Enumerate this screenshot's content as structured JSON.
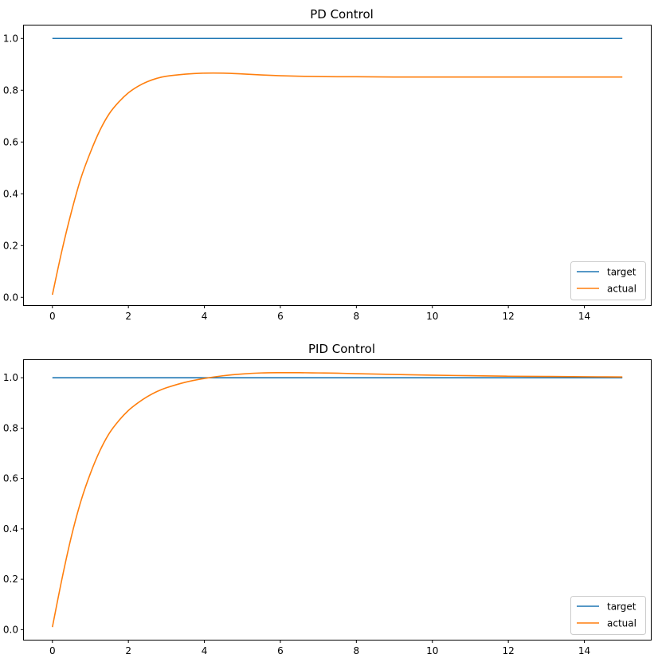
{
  "chart_data": [
    {
      "type": "line",
      "title": "PD Control",
      "xlabel": "",
      "ylabel": "",
      "xlim": [
        -0.75,
        15.75
      ],
      "ylim": [
        -0.03,
        1.05
      ],
      "xticks": [
        0,
        2,
        4,
        6,
        8,
        10,
        12,
        14
      ],
      "xtick_labels": [
        "0",
        "2",
        "4",
        "6",
        "8",
        "10",
        "12",
        "14"
      ],
      "yticks": [
        0.0,
        0.2,
        0.4,
        0.6,
        0.8,
        1.0
      ],
      "ytick_labels": [
        "0.0",
        "0.2",
        "0.4",
        "0.6",
        "0.8",
        "1.0"
      ],
      "grid": false,
      "legend_position": "lower-right",
      "series": [
        {
          "name": "target",
          "color": "#1f77b4",
          "x": [
            0,
            15
          ],
          "y": [
            1.0,
            1.0
          ]
        },
        {
          "name": "actual",
          "color": "#ff7f0e",
          "x": [
            0,
            0.25,
            0.5,
            0.75,
            1.0,
            1.25,
            1.5,
            1.75,
            2.0,
            2.25,
            2.5,
            2.75,
            3.0,
            3.5,
            4.0,
            4.5,
            5.0,
            5.5,
            6.0,
            6.5,
            7.0,
            7.5,
            8.0,
            9.0,
            10.0,
            11.0,
            12.0,
            13.0,
            14.0,
            15.0
          ],
          "y": [
            0.01,
            0.18,
            0.33,
            0.46,
            0.56,
            0.645,
            0.71,
            0.755,
            0.79,
            0.815,
            0.833,
            0.846,
            0.854,
            0.862,
            0.866,
            0.866,
            0.863,
            0.859,
            0.856,
            0.854,
            0.853,
            0.852,
            0.852,
            0.851,
            0.851,
            0.851,
            0.851,
            0.851,
            0.851,
            0.851
          ]
        }
      ]
    },
    {
      "type": "line",
      "title": "PID Control",
      "xlabel": "",
      "ylabel": "",
      "xlim": [
        -0.75,
        15.75
      ],
      "ylim": [
        -0.04,
        1.07
      ],
      "xticks": [
        0,
        2,
        4,
        6,
        8,
        10,
        12,
        14
      ],
      "xtick_labels": [
        "0",
        "2",
        "4",
        "6",
        "8",
        "10",
        "12",
        "14"
      ],
      "yticks": [
        0.0,
        0.2,
        0.4,
        0.6,
        0.8,
        1.0
      ],
      "ytick_labels": [
        "0.0",
        "0.2",
        "0.4",
        "0.6",
        "0.8",
        "1.0"
      ],
      "grid": false,
      "legend_position": "lower-right",
      "series": [
        {
          "name": "target",
          "color": "#1f77b4",
          "x": [
            0,
            15
          ],
          "y": [
            1.0,
            1.0
          ]
        },
        {
          "name": "actual",
          "color": "#ff7f0e",
          "x": [
            0,
            0.25,
            0.5,
            0.75,
            1.0,
            1.25,
            1.5,
            1.75,
            2.0,
            2.25,
            2.5,
            2.75,
            3.0,
            3.5,
            4.0,
            4.5,
            5.0,
            5.5,
            6.0,
            6.5,
            7.0,
            7.5,
            8.0,
            9.0,
            10.0,
            11.0,
            12.0,
            13.0,
            14.0,
            15.0
          ],
          "y": [
            0.01,
            0.2,
            0.37,
            0.51,
            0.62,
            0.71,
            0.78,
            0.83,
            0.87,
            0.9,
            0.925,
            0.945,
            0.96,
            0.982,
            0.997,
            1.008,
            1.015,
            1.019,
            1.02,
            1.02,
            1.019,
            1.018,
            1.016,
            1.013,
            1.01,
            1.008,
            1.006,
            1.005,
            1.004,
            1.003
          ]
        }
      ]
    }
  ]
}
